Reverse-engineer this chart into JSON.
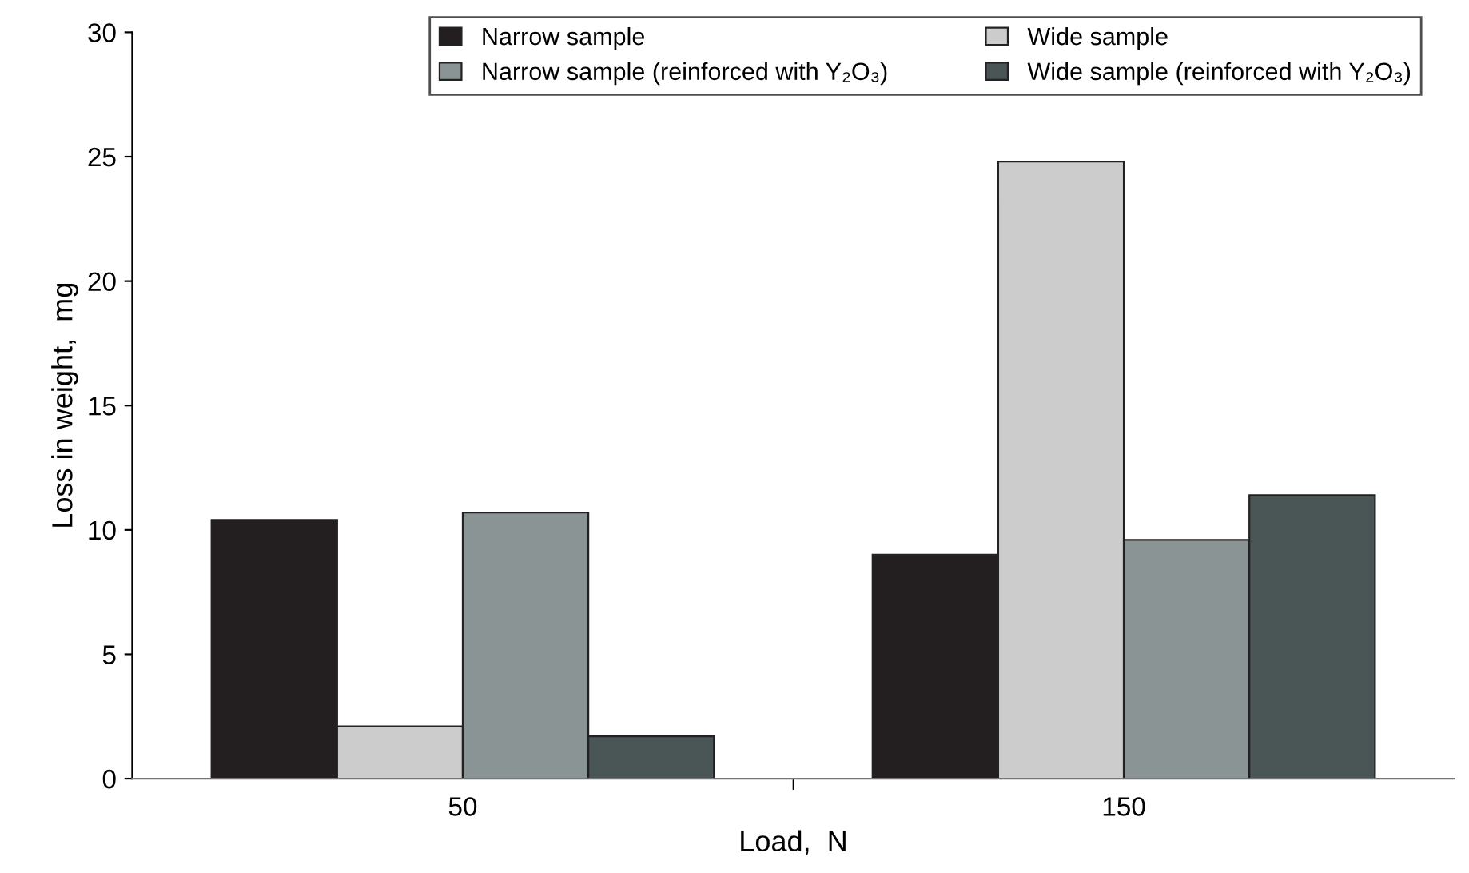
{
  "chart_data": {
    "type": "bar",
    "xlabel": "Load,  N",
    "ylabel": "Loss in weight,  mg",
    "categories": [
      "50",
      "150"
    ],
    "series": [
      {
        "name": "Narrow sample",
        "color": "#231f20",
        "values": [
          10.4,
          9.0
        ]
      },
      {
        "name": "Wide sample",
        "color": "#cccccc",
        "values": [
          2.1,
          24.8
        ]
      },
      {
        "name": "Narrow sample (reinforced with Y₂O₃)",
        "color": "#8a9494",
        "values": [
          10.7,
          9.6
        ]
      },
      {
        "name": "Wide sample (reinforced with Y₂O₃)",
        "color": "#4a5656",
        "values": [
          1.7,
          11.4
        ]
      }
    ],
    "ylim": [
      0,
      30
    ],
    "yticks": [
      0,
      5,
      10,
      15,
      20,
      25,
      30
    ],
    "grid": false,
    "legend": "top"
  }
}
